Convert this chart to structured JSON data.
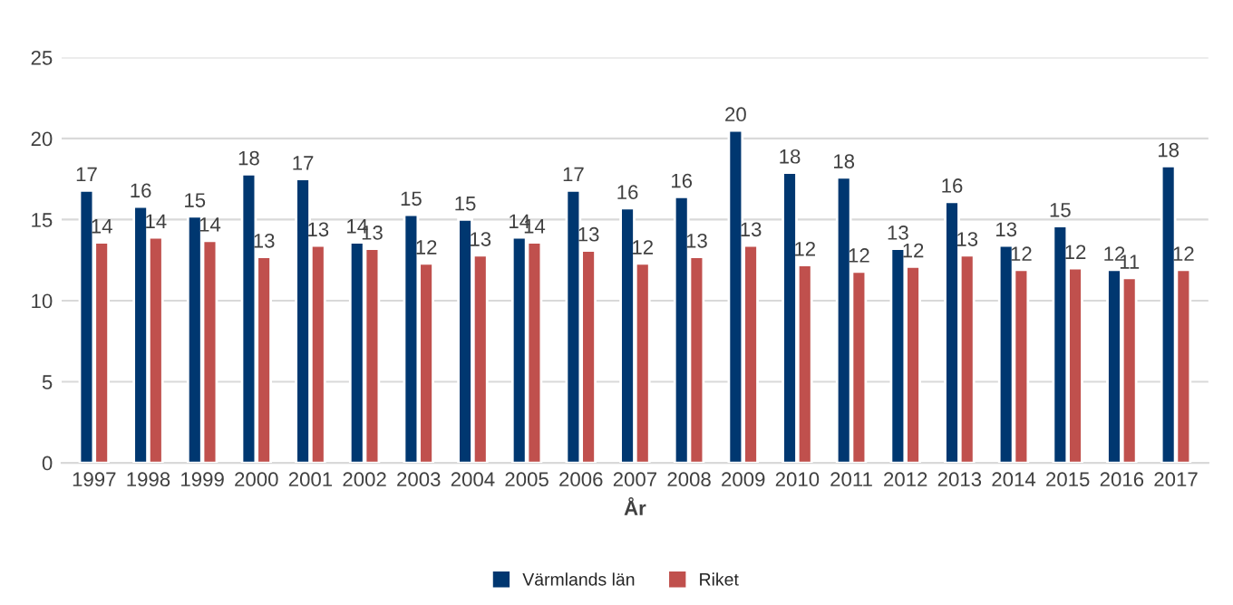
{
  "chart_data": {
    "type": "bar",
    "xlabel": "År",
    "categories": [
      "1997",
      "1998",
      "1999",
      "2000",
      "2001",
      "2002",
      "2003",
      "2004",
      "2005",
      "2006",
      "2007",
      "2008",
      "2009",
      "2010",
      "2011",
      "2012",
      "2013",
      "2014",
      "2015",
      "2016",
      "2017"
    ],
    "series": [
      {
        "name": "Värmlands län",
        "color": "#003770",
        "values": [
          16.8,
          15.8,
          15.2,
          17.8,
          17.5,
          13.6,
          15.3,
          15.0,
          13.9,
          16.8,
          15.7,
          16.4,
          20.5,
          17.9,
          17.6,
          13.2,
          16.1,
          13.4,
          14.6,
          11.9,
          18.3
        ],
        "value_labels": [
          "17",
          "16",
          "15",
          "18",
          "17",
          "14",
          "15",
          "15",
          "14",
          "17",
          "16",
          "16",
          "20",
          "18",
          "18",
          "13",
          "16",
          "13",
          "15",
          "12",
          "18"
        ]
      },
      {
        "name": "Riket",
        "color": "#c0504d",
        "values": [
          13.6,
          13.9,
          13.7,
          12.7,
          13.4,
          13.2,
          12.3,
          12.8,
          13.6,
          13.1,
          12.3,
          12.7,
          13.4,
          12.2,
          11.8,
          12.1,
          12.8,
          11.9,
          12.0,
          11.4,
          11.9
        ],
        "value_labels": [
          "14",
          "14",
          "14",
          "13",
          "13",
          "13",
          "12",
          "13",
          "14",
          "13",
          "12",
          "13",
          "13",
          "12",
          "12",
          "12",
          "13",
          "12",
          "12",
          "11",
          "12"
        ]
      }
    ],
    "ylim": [
      0,
      25
    ],
    "yticks": [
      0,
      5,
      10,
      15,
      20,
      25
    ],
    "grid": "y",
    "legend": "bottom"
  }
}
